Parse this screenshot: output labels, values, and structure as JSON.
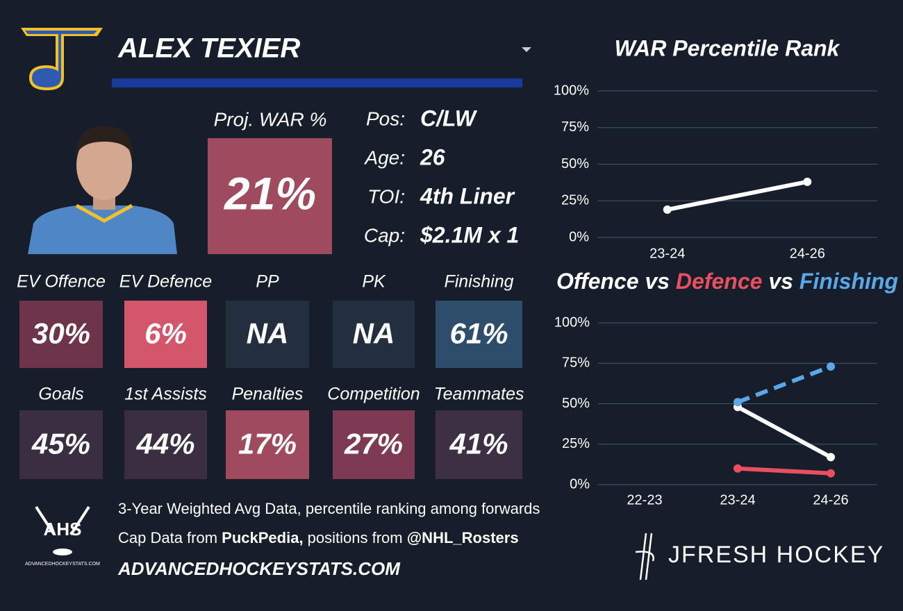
{
  "header": {
    "name": "ALEX TEXIER"
  },
  "projected_war": {
    "label": "Proj. WAR %",
    "value": "21%",
    "color": "#a04a5e"
  },
  "info": [
    {
      "label": "Pos:",
      "value": "C/LW"
    },
    {
      "label": "Age:",
      "value": "26"
    },
    {
      "label": "TOI:",
      "value": "4th Liner"
    },
    {
      "label": "Cap:",
      "value": "$2.1M x 1"
    }
  ],
  "tiles": [
    [
      {
        "label": "EV Offence",
        "value": "30%",
        "color": "#6e3449"
      },
      {
        "label": "EV Defence",
        "value": "6%",
        "color": "#d4566b"
      },
      {
        "label": "PP",
        "value": "NA",
        "color": "#232f3f"
      },
      {
        "label": "PK",
        "value": "NA",
        "color": "#232f3f"
      },
      {
        "label": "Finishing",
        "value": "61%",
        "color": "#2e4d6b"
      }
    ],
    [
      {
        "label": "Goals",
        "value": "45%",
        "color": "#3a2f42"
      },
      {
        "label": "1st Assists",
        "value": "44%",
        "color": "#3a2f42"
      },
      {
        "label": "Penalties",
        "value": "17%",
        "color": "#a04a5e"
      },
      {
        "label": "Competition",
        "value": "27%",
        "color": "#7d3a52"
      },
      {
        "label": "Teammates",
        "value": "41%",
        "color": "#3e3044"
      }
    ]
  ],
  "footer": {
    "logo": "AHS",
    "logo_caption": "ADVANCEDHOCKEYSTATS.COM",
    "lines": [
      [
        {
          "text": "3-Year Weighted Avg Data, percentile ranking among forwards",
          "bold": false
        }
      ],
      [
        {
          "text": "Cap Data from ",
          "bold": false
        },
        {
          "text": "PuckPedia,",
          "bold": true
        },
        {
          "text": " positions from ",
          "bold": false
        },
        {
          "text": "@NHL_Rosters",
          "bold": true
        }
      ]
    ],
    "site": "ADVANCEDHOCKEYSTATS.COM",
    "brand": "JFRESH HOCKEY"
  },
  "chart_data": [
    {
      "type": "line",
      "title": "WAR Percentile Rank",
      "categories": [
        "23-24",
        "24-26"
      ],
      "series": [
        {
          "color": "#ffffff",
          "dashed": false,
          "values": [
            19,
            38
          ]
        }
      ],
      "ylim": [
        0,
        100
      ],
      "yticks": [
        {
          "value": 0,
          "label": "0%"
        },
        {
          "value": 25,
          "label": "25%"
        },
        {
          "value": 50,
          "label": "50%"
        },
        {
          "value": 75,
          "label": "75%"
        },
        {
          "value": 100,
          "label": "100%"
        }
      ],
      "grid": true
    },
    {
      "type": "line",
      "title_joiner": "vs",
      "categories": [
        "22-23",
        "23-24",
        "24-26"
      ],
      "series": [
        {
          "name": "Offence",
          "color": "#ffffff",
          "dashed": false,
          "values": [
            null,
            48,
            17
          ]
        },
        {
          "name": "Defence",
          "color": "#e8505f",
          "dashed": false,
          "values": [
            null,
            10,
            7
          ]
        },
        {
          "name": "Finishing",
          "color": "#5aa8e8",
          "dashed": true,
          "values": [
            null,
            51,
            73
          ]
        }
      ],
      "ylim": [
        0,
        100
      ],
      "yticks": [
        {
          "value": 0,
          "label": "0%"
        },
        {
          "value": 25,
          "label": "25%"
        },
        {
          "value": 50,
          "label": "50%"
        },
        {
          "value": 75,
          "label": "75%"
        },
        {
          "value": 100,
          "label": "100%"
        }
      ],
      "grid": true
    }
  ]
}
